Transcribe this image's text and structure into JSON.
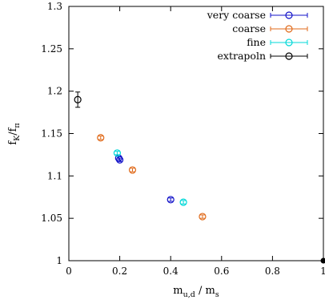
{
  "chart_data": {
    "type": "scatter",
    "xlim": [
      0,
      1
    ],
    "ylim": [
      1,
      1.3
    ],
    "xticks": [
      0,
      0.2,
      0.4,
      0.6,
      0.8,
      1
    ],
    "yticks": [
      1,
      1.05,
      1.1,
      1.15,
      1.2,
      1.25,
      1.3
    ],
    "xtick_labels": [
      "0",
      "0.2",
      "0.4",
      "0.6",
      "0.8",
      "1"
    ],
    "ytick_labels": [
      "1",
      "1.05",
      "1.1",
      "1.15",
      "1.2",
      "1.25",
      "1.3"
    ],
    "xlabel": {
      "main": "m",
      "sub1": "u,d",
      "mid": " / m",
      "sub2": "s"
    },
    "ylabel": {
      "main": "f",
      "sub1": "K",
      "mid": "/f",
      "sub2": "π"
    },
    "grid": false,
    "legend_position": "top-right",
    "series": [
      {
        "name": "very coarse",
        "color": "#1010c8",
        "points": [
          {
            "x": 0.196,
            "y": 1.121,
            "yerr": 0.002
          },
          {
            "x": 0.2,
            "y": 1.119,
            "yerr": 0.002
          },
          {
            "x": 0.4,
            "y": 1.072,
            "yerr": 0.002
          }
        ]
      },
      {
        "name": "coarse",
        "color": "#e06a1a",
        "points": [
          {
            "x": 0.125,
            "y": 1.145,
            "yerr": 0.002
          },
          {
            "x": 0.25,
            "y": 1.107,
            "yerr": 0.002
          },
          {
            "x": 0.525,
            "y": 1.052,
            "yerr": 0.002
          }
        ]
      },
      {
        "name": "fine",
        "color": "#00d8d8",
        "points": [
          {
            "x": 0.19,
            "y": 1.127,
            "yerr": 0.002
          },
          {
            "x": 0.45,
            "y": 1.069,
            "yerr": 0.002
          }
        ]
      },
      {
        "name": "extrapoln",
        "color": "#000000",
        "points": [
          {
            "x": 0.035,
            "y": 1.19,
            "yerr": 0.009
          }
        ]
      }
    ]
  }
}
